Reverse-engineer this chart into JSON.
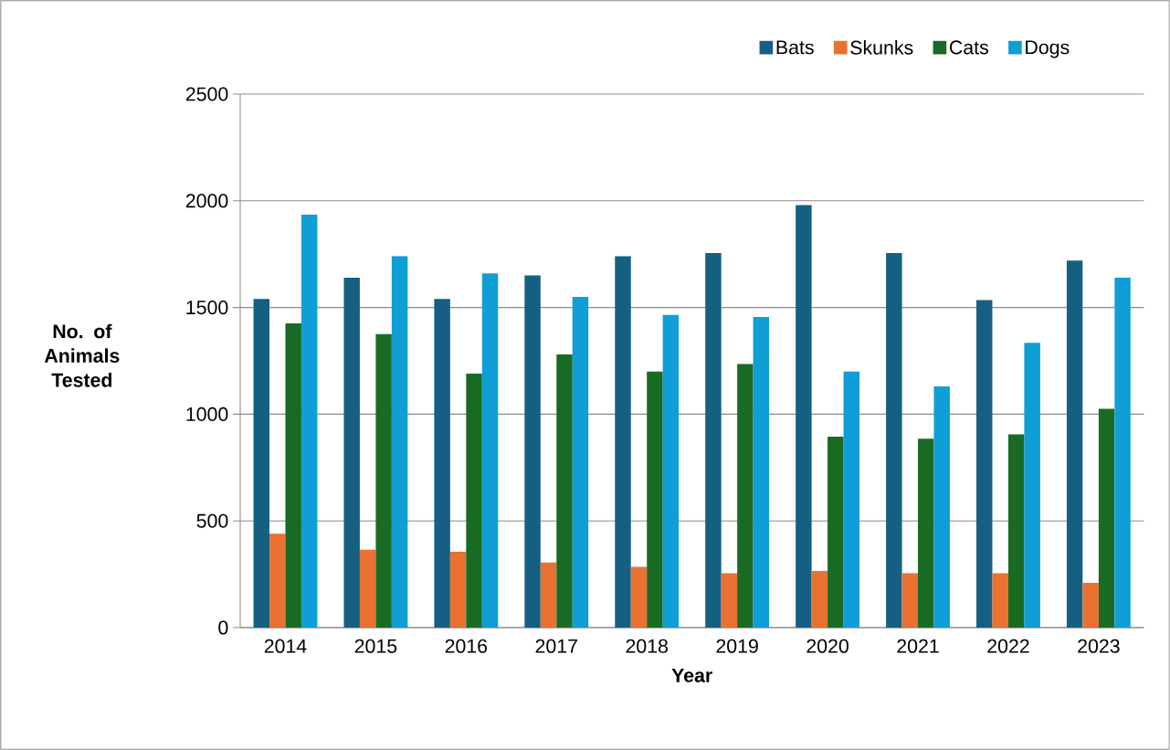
{
  "chart_data": {
    "type": "bar",
    "xlabel": "Year",
    "ylabel": "No. of Animals Tested",
    "categories": [
      "2014",
      "2015",
      "2016",
      "2017",
      "2018",
      "2019",
      "2020",
      "2021",
      "2022",
      "2023"
    ],
    "series": [
      {
        "name": "Bats",
        "color": "#156082",
        "values": [
          1540,
          1640,
          1540,
          1650,
          1740,
          1755,
          1980,
          1755,
          1535,
          1720
        ]
      },
      {
        "name": "Skunks",
        "color": "#e97132",
        "values": [
          440,
          365,
          355,
          305,
          285,
          255,
          265,
          255,
          255,
          210
        ]
      },
      {
        "name": "Cats",
        "color": "#196b24",
        "values": [
          1425,
          1375,
          1190,
          1280,
          1200,
          1235,
          895,
          885,
          905,
          1025
        ]
      },
      {
        "name": "Dogs",
        "color": "#0f9ed5",
        "values": [
          1935,
          1740,
          1660,
          1550,
          1465,
          1455,
          1200,
          1130,
          1335,
          1640
        ]
      }
    ],
    "ylim": [
      0,
      2500
    ],
    "yticks": [
      0,
      500,
      1000,
      1500,
      2000,
      2500
    ],
    "grid": "y",
    "legend": "top right"
  }
}
